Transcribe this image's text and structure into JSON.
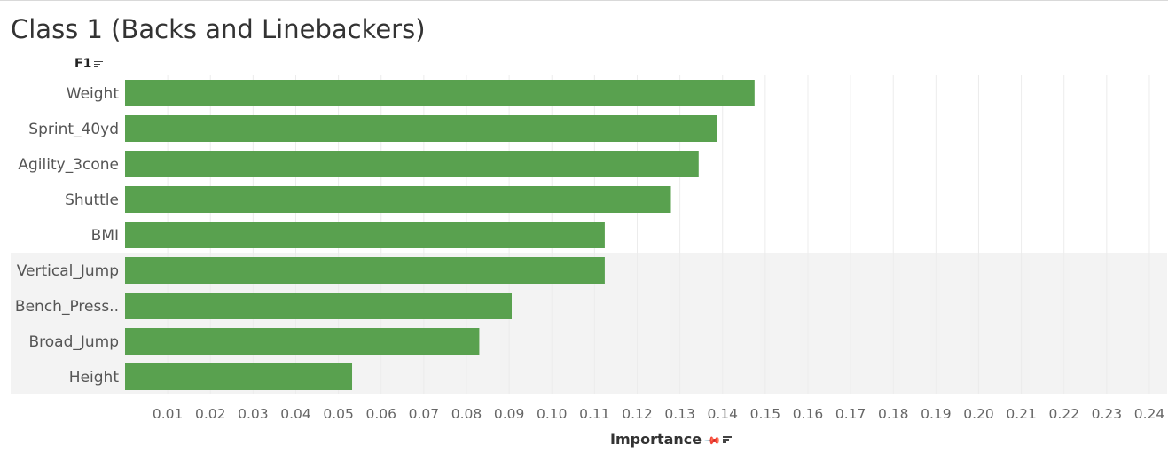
{
  "title": "Class 1 (Backs and Linebackers)",
  "row_header": "F1",
  "x_title": "Importance",
  "icons": {
    "row_sort": "sort-descending-icon",
    "x_pin": "pin-icon",
    "x_sort": "sort-descending-icon"
  },
  "colors": {
    "bar": "#59a14f",
    "highlight_band": "#f3f3f3",
    "grid": "#ececec"
  },
  "chart_data": {
    "type": "bar",
    "orientation": "horizontal",
    "title": "Class 1 (Backs and Linebackers)",
    "xlabel": "Importance",
    "ylabel": "F1",
    "categories": [
      "Weight",
      "Sprint_40yd",
      "Agility_3cone",
      "Shuttle",
      "BMI",
      "Vertical_Jump",
      "Bench_Press..",
      "Broad_Jump",
      "Height"
    ],
    "values": [
      0.1475,
      0.1388,
      0.1344,
      0.1279,
      0.1124,
      0.1124,
      0.0906,
      0.083,
      0.0532
    ],
    "highlighted_categories": [
      "Vertical_Jump",
      "Bench_Press..",
      "Broad_Jump",
      "Height"
    ],
    "xlim": [
      0,
      0.2425
    ],
    "xticks": [
      "0.01",
      "0.02",
      "0.03",
      "0.04",
      "0.05",
      "0.06",
      "0.07",
      "0.08",
      "0.09",
      "0.10",
      "0.11",
      "0.12",
      "0.13",
      "0.14",
      "0.15",
      "0.16",
      "0.17",
      "0.18",
      "0.19",
      "0.20",
      "0.21",
      "0.22",
      "0.23",
      "0.24"
    ],
    "grid": true
  }
}
